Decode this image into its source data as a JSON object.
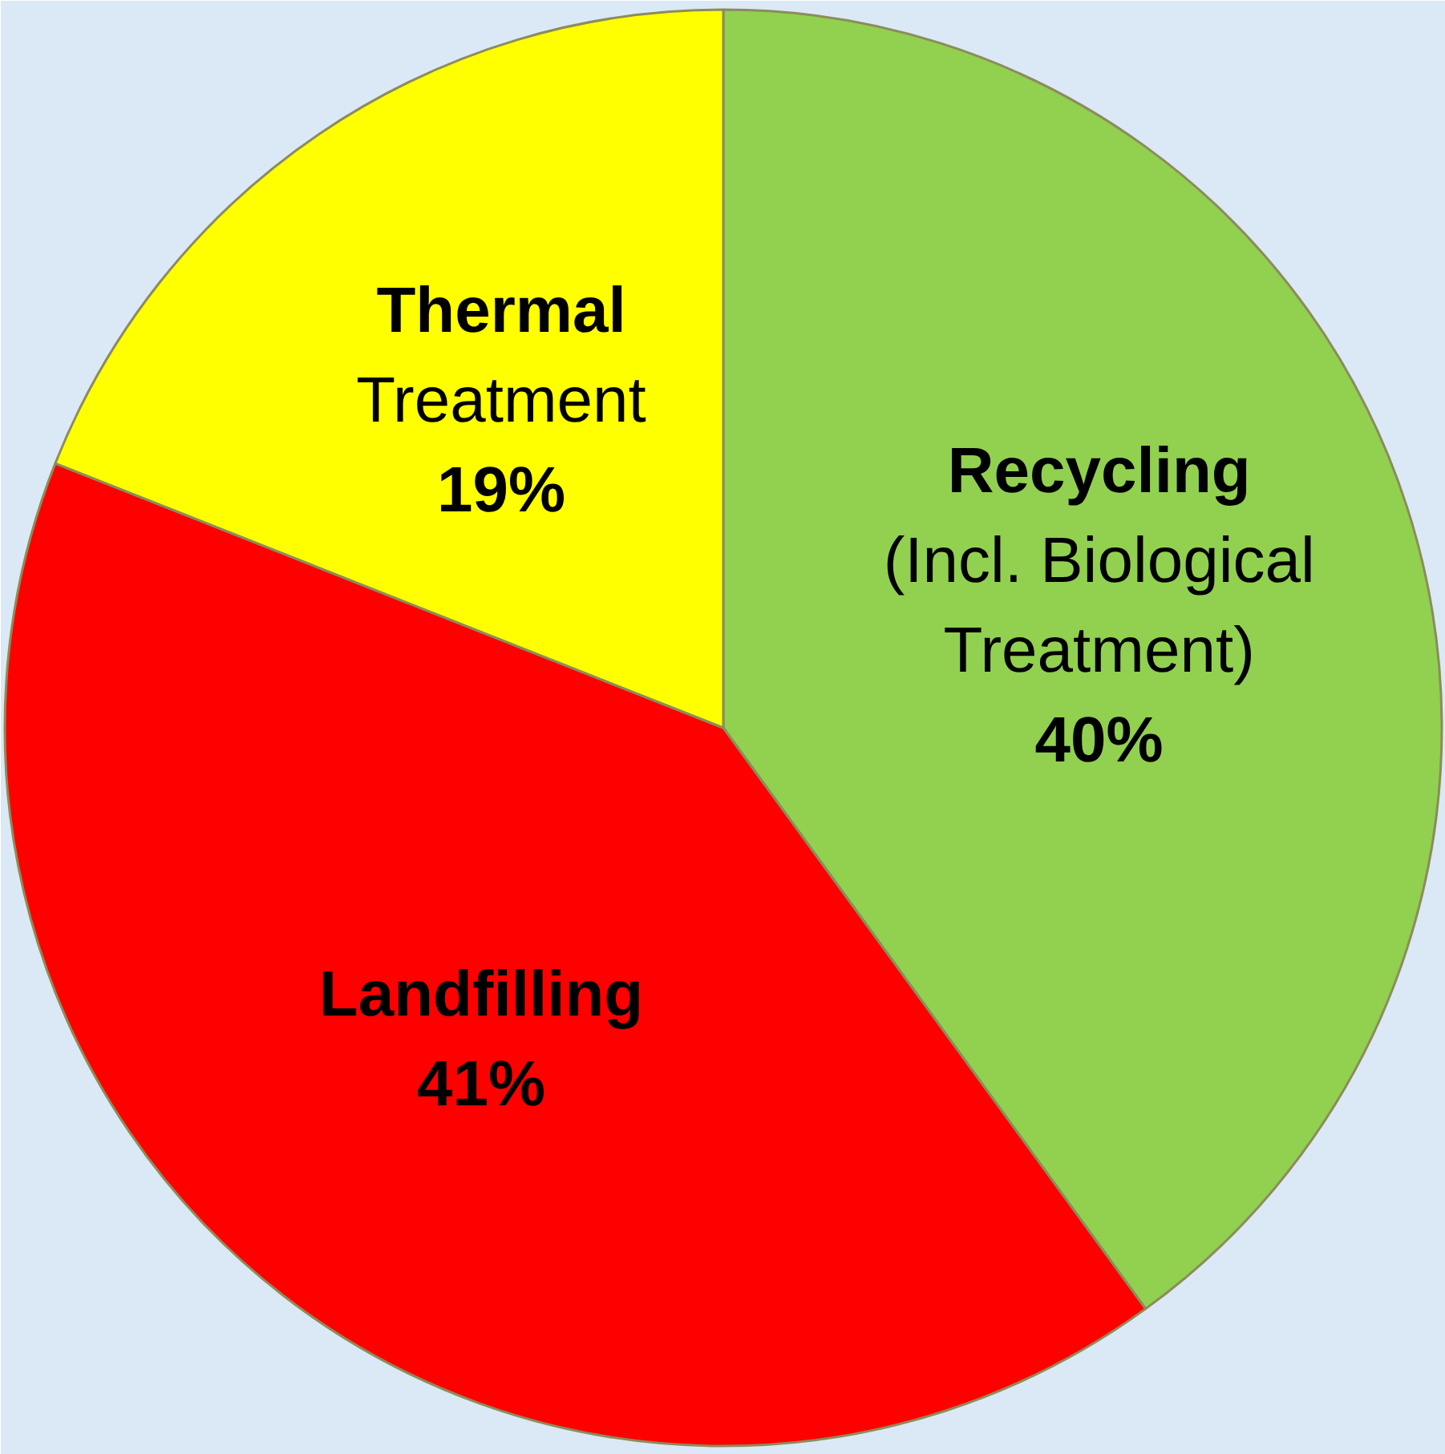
{
  "chart_data": {
    "type": "pie",
    "categories": [
      "Recycling\n(Incl. Biological\nTreatment)",
      "Landfilling",
      "Thermal\nTreatment"
    ],
    "values": [
      40,
      41,
      19
    ],
    "colors": [
      "#92d050",
      "#ff0000",
      "#ffff00"
    ],
    "value_labels": [
      "40%",
      "41%",
      "19%"
    ]
  }
}
